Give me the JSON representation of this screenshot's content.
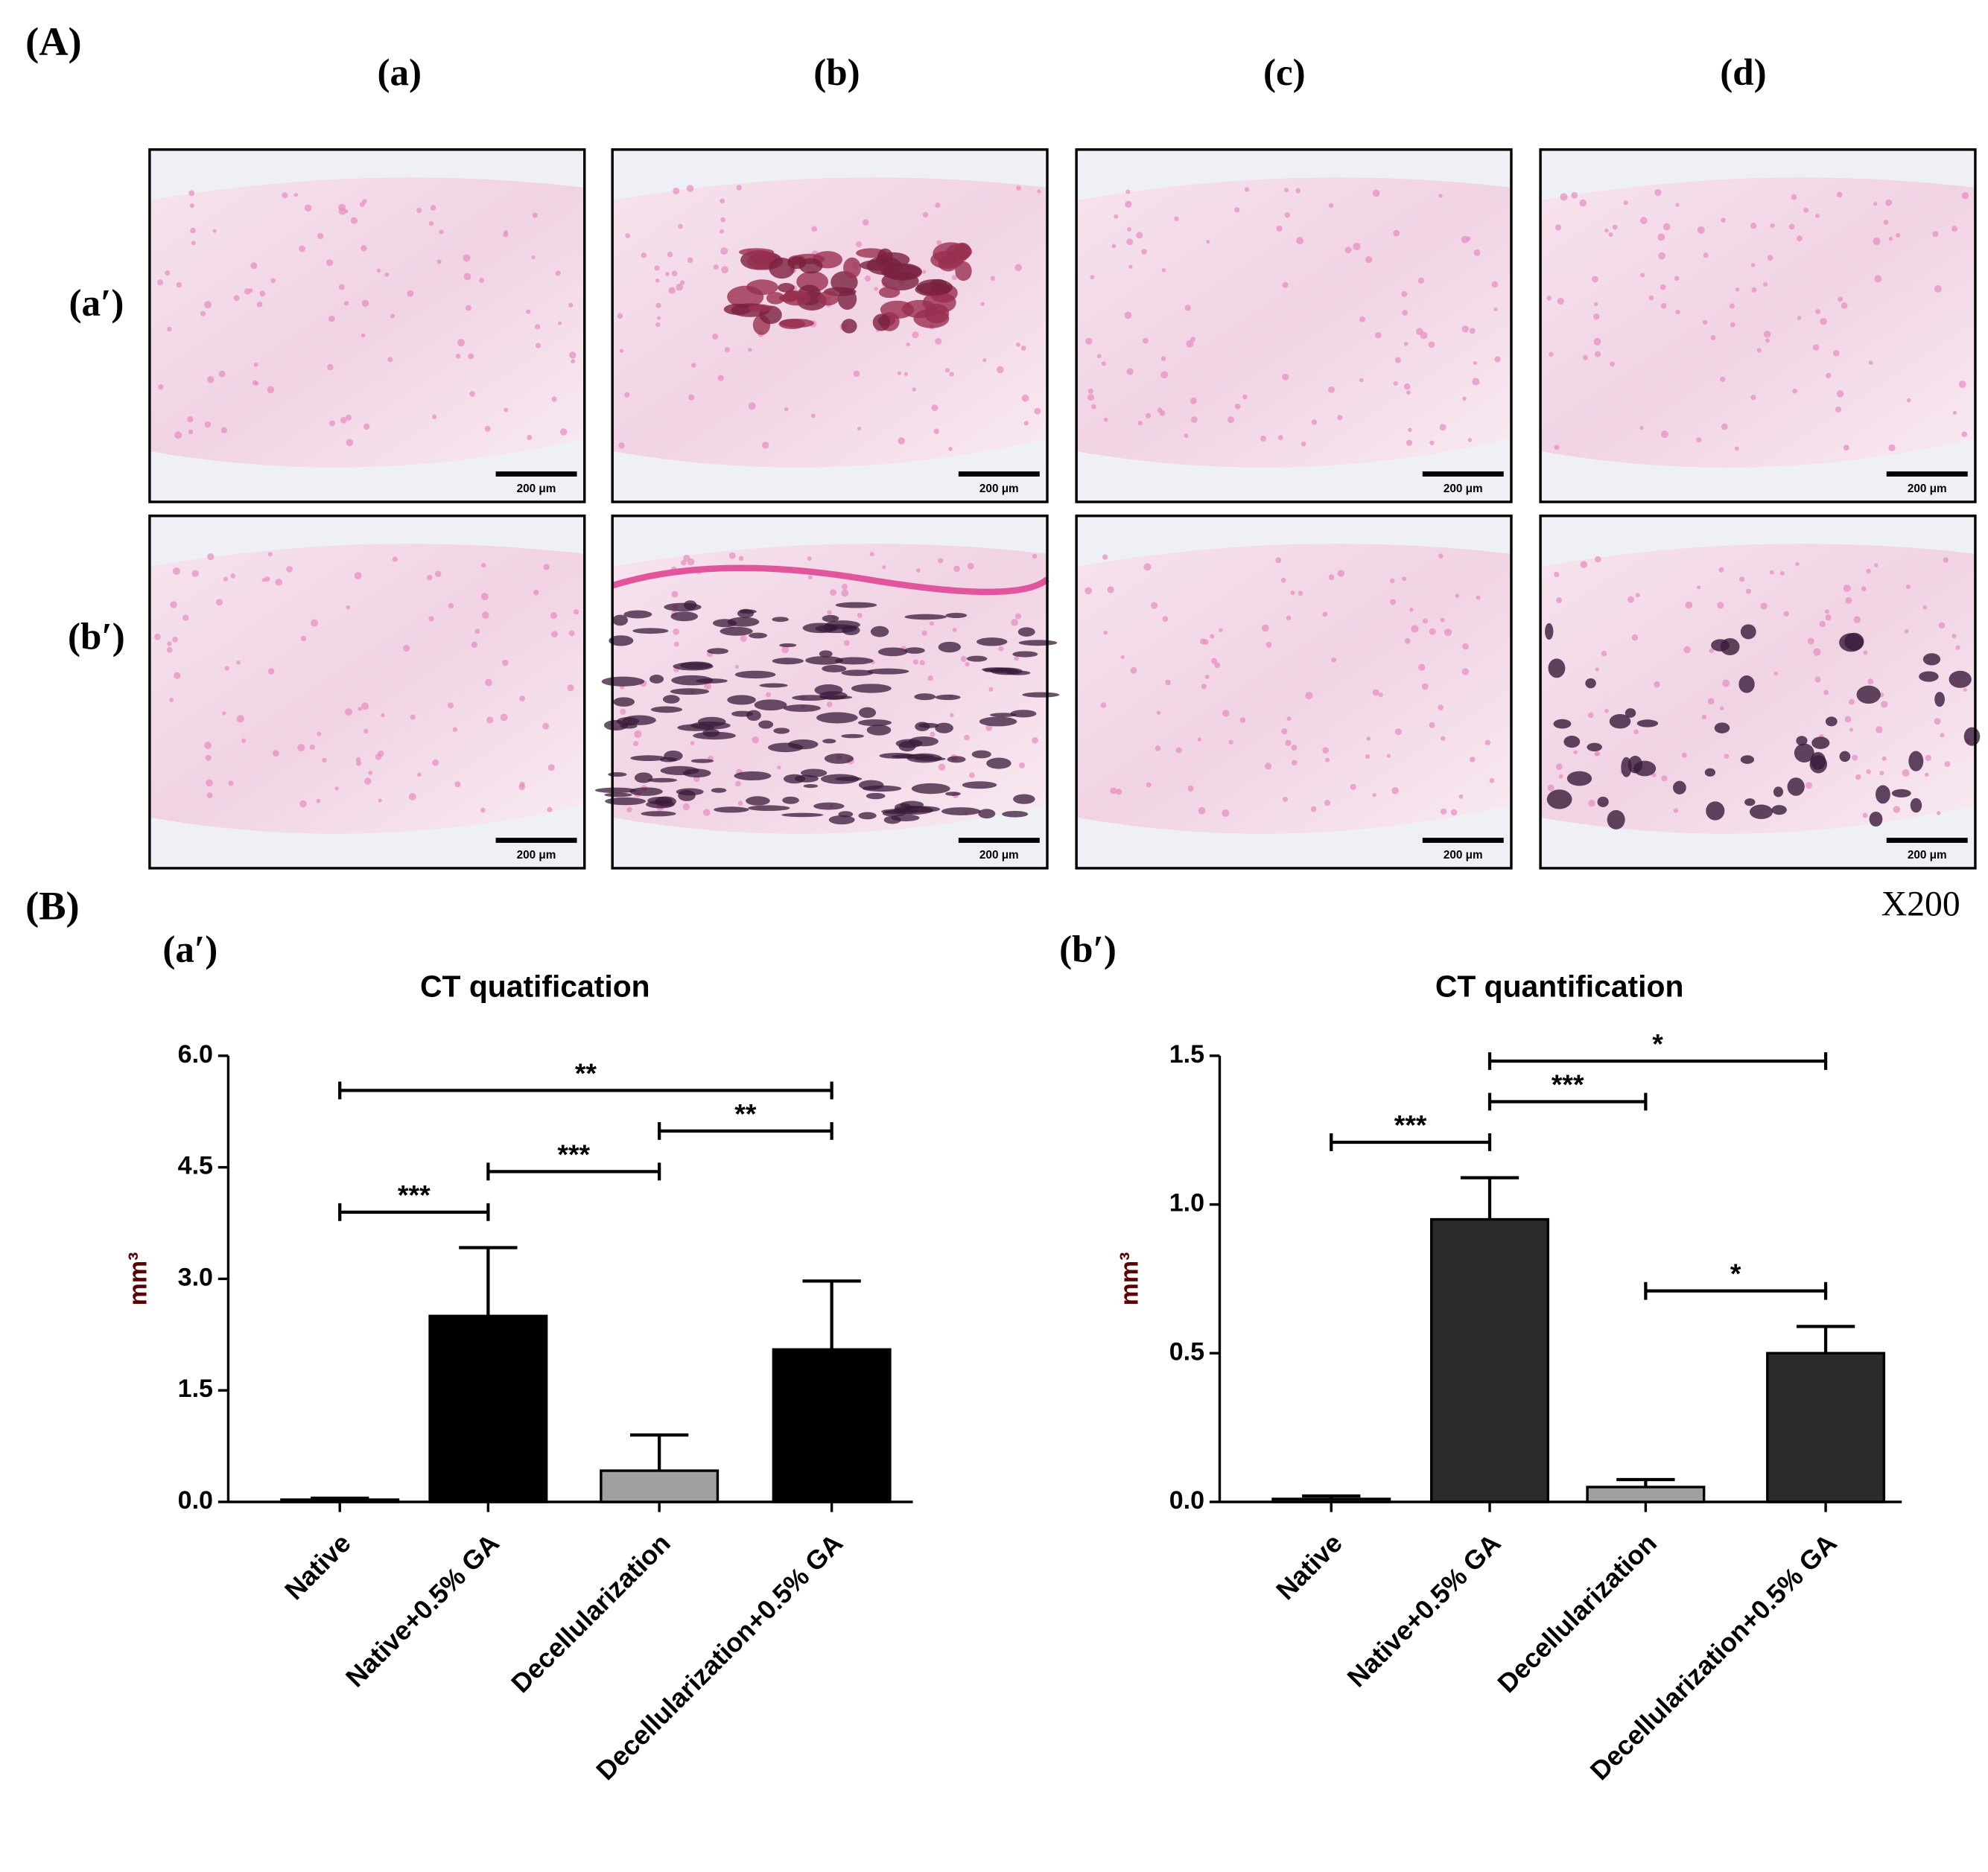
{
  "panel_A": {
    "label": "(A)",
    "columns": [
      "(a)",
      "(b)",
      "(c)",
      "(d)"
    ],
    "rows": [
      "(a′)",
      "(b′)"
    ],
    "scale_bar_label": "200 μm",
    "magnification": "X200"
  },
  "panel_B": {
    "label": "(B)"
  },
  "chart_data": [
    {
      "type": "bar",
      "panel_label": "(a′)",
      "title": "CT quatification",
      "y_label": "mm³",
      "categories": [
        "Native",
        "Native+0.5% GA",
        "Decellularization",
        "Decellularization+0.5% GA"
      ],
      "values": [
        0.03,
        2.5,
        0.42,
        2.05
      ],
      "errors": [
        0.02,
        0.92,
        0.48,
        0.92
      ],
      "colors": [
        "#000000",
        "#000000",
        "#a0a0a0",
        "#000000"
      ],
      "ylim": [
        0,
        6
      ],
      "yticks": [
        {
          "value": 0,
          "label": "0.0"
        },
        1.5,
        {
          "value": 3,
          "label": "3.0"
        },
        4.5,
        {
          "value": 6,
          "label": "6.0"
        }
      ],
      "significance": [
        {
          "pair": [
            0,
            1
          ],
          "label": "***"
        },
        {
          "pair": [
            1,
            2
          ],
          "label": "***"
        },
        {
          "pair": [
            2,
            3
          ],
          "label": "**"
        },
        {
          "pair": [
            0,
            3
          ],
          "label": "**"
        }
      ]
    },
    {
      "type": "bar",
      "panel_label": "(b′)",
      "title": "CT quantification",
      "y_label": "mm³",
      "categories": [
        "Native",
        "Native+0.5% GA",
        "Decellularization",
        "Decellularization+0.5% GA"
      ],
      "values": [
        0.01,
        0.95,
        0.05,
        0.5
      ],
      "errors": [
        0.01,
        0.14,
        0.025,
        0.09
      ],
      "colors": [
        "#2b2b2b",
        "#2b2b2b",
        "#a0a0a0",
        "#2b2b2b"
      ],
      "ylim": [
        0,
        1.5
      ],
      "yticks": [
        {
          "value": 0,
          "label": "0.0"
        },
        0.5,
        {
          "value": 1,
          "label": "1.0"
        },
        1.5
      ],
      "significance": [
        {
          "pair": [
            2,
            3
          ],
          "label": "*"
        },
        {
          "pair": [
            0,
            1
          ],
          "label": "***"
        },
        {
          "pair": [
            1,
            2
          ],
          "label": "***"
        },
        {
          "pair": [
            1,
            3
          ],
          "label": "*"
        }
      ]
    }
  ]
}
